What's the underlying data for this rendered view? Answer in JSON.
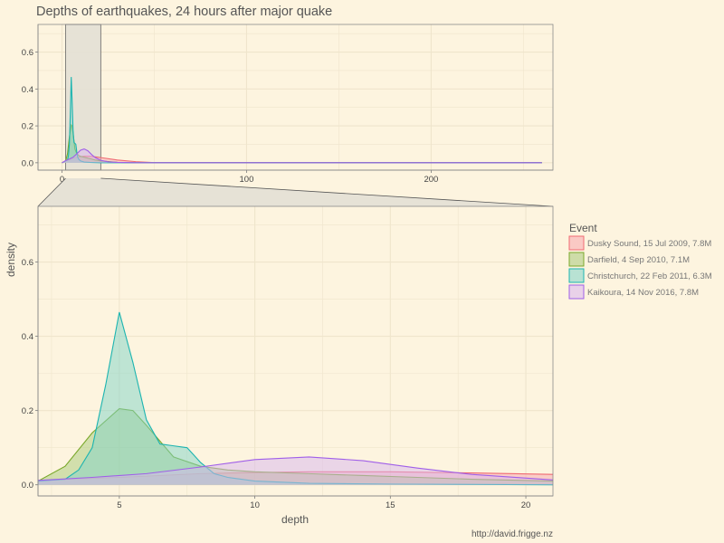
{
  "chart_data": {
    "type": "area",
    "title": "Depths of earthquakes, 24 hours after major quake",
    "xlabel": "depth",
    "ylabel": "density",
    "legend_title": "Event",
    "legend_position": "right",
    "caption": "http://david.frigge.nz",
    "colors": {
      "background": "#fdf4df",
      "grid": "#efe5cc",
      "axis": "#7a7a7a",
      "zoom_box": "#e3e0d5"
    },
    "overview": {
      "xlim": [
        -13,
        266
      ],
      "ylim": [
        -0.04,
        0.75
      ],
      "x_ticks": [
        0,
        100,
        200
      ],
      "y_ticks": [
        0.0,
        0.2,
        0.4,
        0.6
      ],
      "y_tick_labels": [
        "0.0",
        "0.2",
        "0.4",
        "0.6"
      ],
      "zoom_range": [
        2,
        21
      ]
    },
    "zoom": {
      "xlim": [
        2,
        21
      ],
      "ylim": [
        -0.03,
        0.75
      ],
      "x_ticks": [
        5,
        10,
        15,
        20
      ],
      "y_ticks": [
        0.0,
        0.2,
        0.4,
        0.6
      ],
      "y_tick_labels": [
        "0.0",
        "0.2",
        "0.4",
        "0.6"
      ]
    },
    "series": [
      {
        "name": "Dusky Sound, 15 Jul 2009, 7.8M",
        "color": "#f06a73",
        "fill": "#f7a5ad",
        "x": [
          0,
          2,
          3,
          5,
          8,
          10,
          12,
          15,
          18,
          21,
          30,
          40,
          50,
          260
        ],
        "y": [
          0.0,
          0.01,
          0.015,
          0.02,
          0.03,
          0.033,
          0.035,
          0.035,
          0.032,
          0.028,
          0.015,
          0.006,
          0.001,
          0.0
        ]
      },
      {
        "name": "Darfield, 4 Sep 2010, 7.1M",
        "color": "#7aa82b",
        "fill": "#a8c97a",
        "x": [
          0,
          2,
          3,
          4,
          5,
          5.5,
          6,
          7,
          8,
          9,
          10,
          12,
          14,
          16,
          18,
          21,
          30,
          40,
          260
        ],
        "y": [
          0.0,
          0.01,
          0.05,
          0.14,
          0.205,
          0.2,
          0.16,
          0.075,
          0.05,
          0.04,
          0.035,
          0.03,
          0.025,
          0.02,
          0.015,
          0.01,
          0.002,
          0.0,
          0.0
        ]
      },
      {
        "name": "Christchurch, 22 Feb 2011, 6.3M",
        "color": "#1cb4b0",
        "fill": "#7fd3c8",
        "x": [
          0,
          2,
          3,
          3.5,
          4,
          4.5,
          5,
          5.5,
          6,
          6.5,
          7,
          7.5,
          8,
          8.5,
          9,
          10,
          12,
          15,
          21,
          40,
          260
        ],
        "y": [
          0.0,
          0.01,
          0.015,
          0.04,
          0.1,
          0.27,
          0.465,
          0.33,
          0.175,
          0.11,
          0.105,
          0.1,
          0.06,
          0.03,
          0.02,
          0.01,
          0.004,
          0.002,
          0.0,
          0.0,
          0.0
        ]
      },
      {
        "name": "Kaikoura, 14 Nov 2016, 7.8M",
        "color": "#a05fe8",
        "fill": "#d8b5f0",
        "x": [
          0,
          2,
          4,
          6,
          8,
          10,
          12,
          14,
          16,
          18,
          21,
          25,
          30,
          40,
          260
        ],
        "y": [
          0.0,
          0.012,
          0.02,
          0.03,
          0.048,
          0.068,
          0.075,
          0.065,
          0.045,
          0.028,
          0.013,
          0.005,
          0.002,
          0.0,
          0.0
        ]
      }
    ]
  }
}
